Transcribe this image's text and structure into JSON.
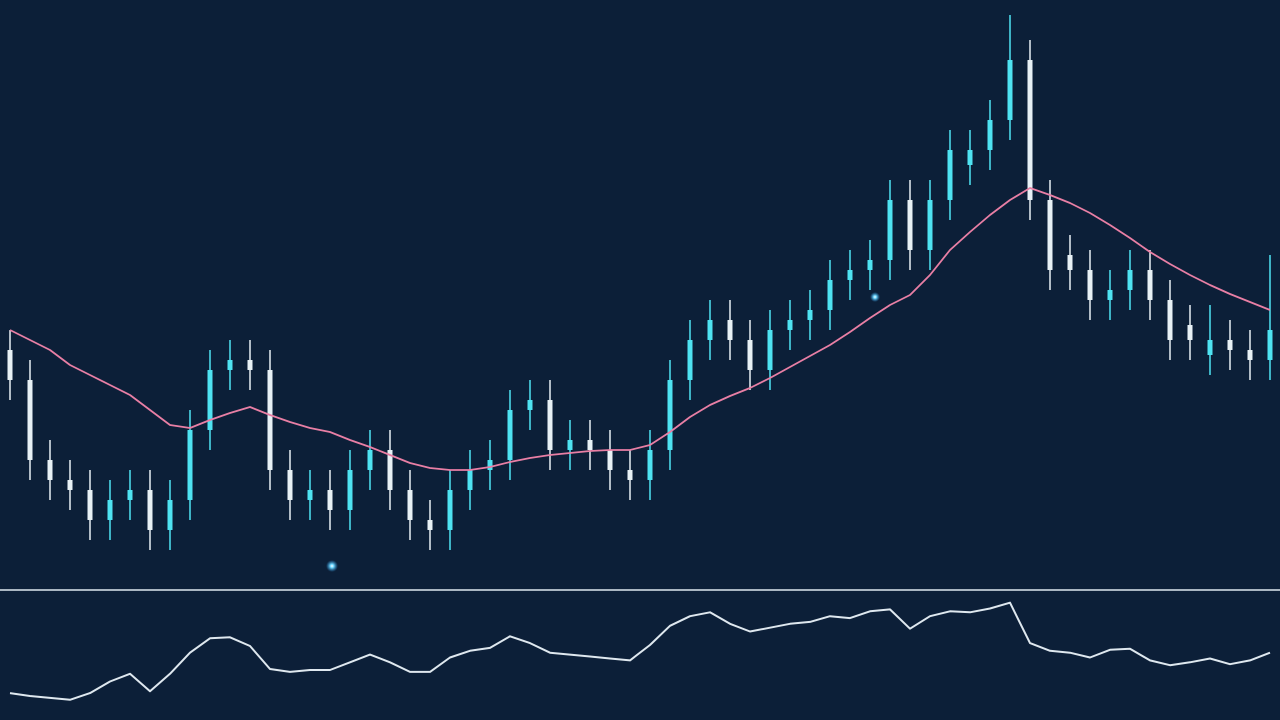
{
  "chart_data": [
    {
      "type": "candlestick",
      "ylim": [
        0,
        590
      ],
      "up_color": "#4fe3f2",
      "down_color": "#e8f1f6",
      "open": [
        240,
        210,
        130,
        110,
        100,
        70,
        90,
        100,
        60,
        90,
        160,
        220,
        230,
        220,
        120,
        90,
        100,
        80,
        120,
        140,
        100,
        70,
        60,
        100,
        120,
        130,
        180,
        190,
        140,
        150,
        140,
        120,
        110,
        140,
        210,
        250,
        270,
        250,
        220,
        260,
        270,
        280,
        310,
        320,
        330,
        390,
        340,
        390,
        425,
        440,
        470,
        530,
        390,
        335,
        320,
        290,
        300,
        320,
        290,
        265,
        235,
        250,
        240,
        230
      ],
      "high": [
        260,
        230,
        150,
        130,
        120,
        110,
        120,
        120,
        110,
        180,
        240,
        250,
        250,
        240,
        140,
        120,
        120,
        140,
        160,
        160,
        120,
        90,
        120,
        140,
        150,
        200,
        210,
        210,
        170,
        170,
        160,
        140,
        160,
        230,
        270,
        290,
        290,
        270,
        280,
        290,
        300,
        330,
        340,
        350,
        410,
        410,
        410,
        460,
        460,
        490,
        575,
        550,
        410,
        355,
        340,
        320,
        340,
        340,
        310,
        285,
        285,
        270,
        260,
        335
      ],
      "low": [
        190,
        110,
        90,
        80,
        50,
        50,
        70,
        40,
        40,
        70,
        140,
        200,
        200,
        100,
        70,
        70,
        60,
        60,
        100,
        80,
        50,
        40,
        40,
        80,
        100,
        110,
        160,
        120,
        120,
        120,
        100,
        90,
        90,
        120,
        190,
        230,
        230,
        200,
        200,
        240,
        250,
        260,
        290,
        300,
        310,
        320,
        320,
        370,
        405,
        420,
        450,
        370,
        300,
        300,
        270,
        270,
        280,
        270,
        230,
        230,
        215,
        220,
        210,
        210
      ],
      "close": [
        210,
        130,
        110,
        100,
        70,
        90,
        100,
        60,
        90,
        160,
        220,
        230,
        220,
        120,
        90,
        100,
        80,
        120,
        140,
        100,
        70,
        60,
        100,
        120,
        130,
        180,
        190,
        140,
        150,
        140,
        120,
        110,
        140,
        210,
        250,
        270,
        250,
        220,
        260,
        270,
        280,
        310,
        320,
        330,
        390,
        340,
        390,
        440,
        440,
        470,
        530,
        390,
        320,
        320,
        290,
        300,
        320,
        290,
        250,
        250,
        250,
        240,
        230,
        260
      ],
      "overlay": {
        "type": "line",
        "color": "#e97fa5",
        "values": [
          260,
          250,
          240,
          225,
          215,
          205,
          195,
          180,
          165,
          162,
          170,
          177,
          183,
          175,
          168,
          162,
          158,
          150,
          143,
          135,
          127,
          122,
          120,
          120,
          123,
          128,
          132,
          135,
          137,
          139,
          140,
          140,
          145,
          158,
          173,
          185,
          194,
          202,
          212,
          223,
          234,
          245,
          258,
          272,
          285,
          295,
          315,
          340,
          358,
          375,
          390,
          402,
          395,
          387,
          377,
          365,
          352,
          338,
          326,
          315,
          305,
          296,
          288,
          280
        ]
      }
    },
    {
      "type": "line",
      "ylim": [
        0,
        130
      ],
      "color": "#dfe8ef",
      "values": [
        28,
        25,
        23,
        21,
        28,
        40,
        48,
        30,
        48,
        70,
        85,
        86,
        77,
        53,
        50,
        52,
        52,
        60,
        68,
        60,
        50,
        50,
        65,
        72,
        75,
        87,
        80,
        70,
        68,
        66,
        64,
        62,
        78,
        98,
        108,
        112,
        100,
        92,
        96,
        100,
        102,
        108,
        106,
        113,
        115,
        95,
        108,
        113,
        112,
        116,
        122,
        80,
        72,
        70,
        65,
        73,
        74,
        62,
        57,
        60,
        64,
        58,
        62,
        70
      ]
    }
  ]
}
